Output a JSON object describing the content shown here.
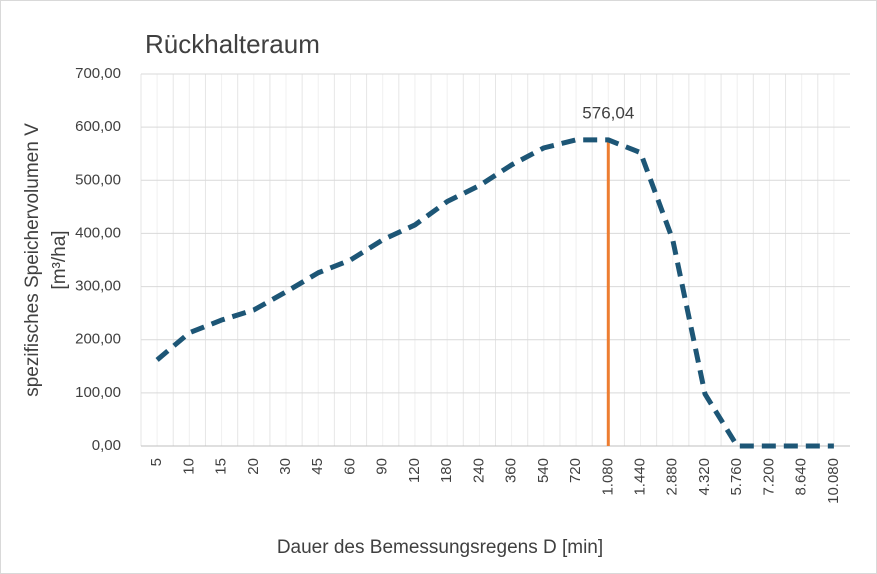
{
  "chart_data": {
    "type": "line",
    "title": "Rückhalteraum",
    "x_label": "Dauer des Bemessungsregens  D [min]",
    "y_label": [
      "spezifisches Speichervolumen V",
      "[m³/ha]"
    ],
    "categories": [
      "5",
      "10",
      "15",
      "20",
      "30",
      "45",
      "60",
      "90",
      "120",
      "180",
      "240",
      "360",
      "540",
      "720",
      "1.080",
      "1.440",
      "2.880",
      "4.320",
      "5.760",
      "7.200",
      "8.640",
      "10.080"
    ],
    "series": [
      {
        "color": "#1d5676",
        "values": [
          162,
          213,
          237,
          256,
          290,
          326,
          350,
          388,
          416,
          460,
          490,
          529,
          561,
          576,
          576.04,
          552,
          388,
          98,
          0,
          0,
          0,
          0
        ]
      }
    ],
    "annotations": [
      {
        "category": "1.080",
        "value": 576.04,
        "label": "576,04",
        "color": "#ed7d31"
      }
    ],
    "ylim": [
      0,
      700
    ],
    "yticks": [
      {
        "value": 0,
        "label": "0,00"
      },
      {
        "value": 100,
        "label": "100,00"
      },
      {
        "value": 200,
        "label": "200,00"
      },
      {
        "value": 300,
        "label": "300,00"
      },
      {
        "value": 400,
        "label": "400,00"
      },
      {
        "value": 500,
        "label": "500,00"
      },
      {
        "value": 600,
        "label": "600,00"
      },
      {
        "value": 700,
        "label": "700,00"
      }
    ],
    "grid": true
  }
}
